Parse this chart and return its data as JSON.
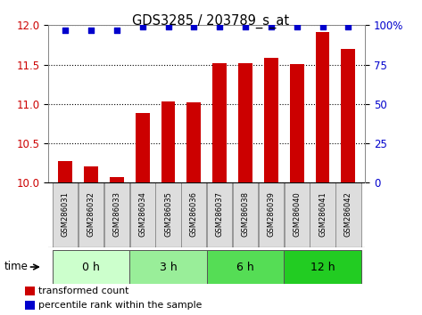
{
  "title": "GDS3285 / 203789_s_at",
  "samples": [
    "GSM286031",
    "GSM286032",
    "GSM286033",
    "GSM286034",
    "GSM286035",
    "GSM286036",
    "GSM286037",
    "GSM286038",
    "GSM286039",
    "GSM286040",
    "GSM286041",
    "GSM286042"
  ],
  "bar_values": [
    10.28,
    10.21,
    10.07,
    10.88,
    11.03,
    11.02,
    11.52,
    11.52,
    11.58,
    11.51,
    11.91,
    11.7
  ],
  "percentile_values": [
    97,
    97,
    97,
    99,
    99,
    99,
    99,
    99,
    99,
    99,
    99,
    99
  ],
  "bar_color": "#cc0000",
  "dot_color": "#0000cc",
  "ylim_left": [
    10.0,
    12.0
  ],
  "ylim_right": [
    0,
    100
  ],
  "yticks_left": [
    10.0,
    10.5,
    11.0,
    11.5,
    12.0
  ],
  "yticks_right": [
    0,
    25,
    50,
    75,
    100
  ],
  "groups": [
    {
      "label": "0 h",
      "start": 0,
      "end": 3,
      "color": "#ccffcc"
    },
    {
      "label": "3 h",
      "start": 3,
      "end": 6,
      "color": "#99ee99"
    },
    {
      "label": "6 h",
      "start": 6,
      "end": 9,
      "color": "#55dd55"
    },
    {
      "label": "12 h",
      "start": 9,
      "end": 12,
      "color": "#22cc22"
    }
  ],
  "time_label": "time",
  "legend_bar_label": "transformed count",
  "legend_dot_label": "percentile rank within the sample",
  "bg_color": "#ffffff",
  "grid_color": "#000000",
  "tick_label_color_left": "#cc0000",
  "tick_label_color_right": "#0000cc",
  "sample_box_color": "#dddddd",
  "sample_box_edge": "#888888"
}
